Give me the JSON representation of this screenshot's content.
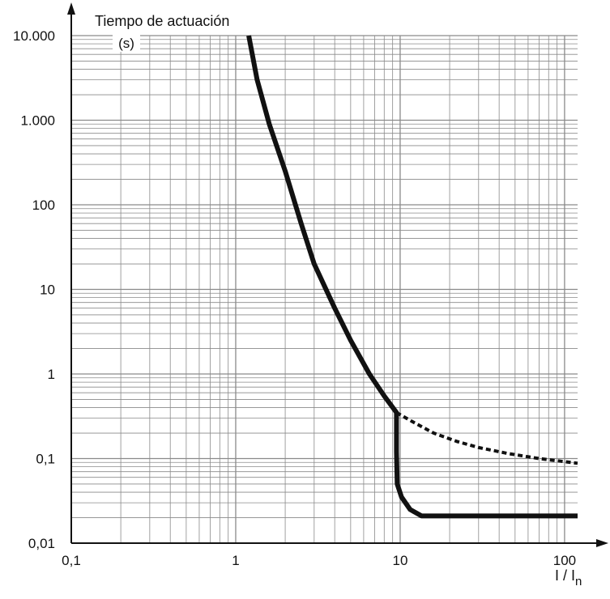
{
  "chart_data": {
    "type": "line",
    "title": "",
    "ylabel": "Tiempo de actuación",
    "yunit": "(s)",
    "xlabel_main": "I / I",
    "xlabel_sub": "n",
    "xscale": "log",
    "yscale": "log",
    "xlim": [
      0.1,
      120
    ],
    "ylim": [
      0.01,
      10000
    ],
    "grid": true,
    "x_ticks": [
      {
        "value": 0.1,
        "label": "0,1"
      },
      {
        "value": 1,
        "label": "1"
      },
      {
        "value": 10,
        "label": "10"
      },
      {
        "value": 100,
        "label": "100"
      }
    ],
    "y_ticks": [
      {
        "value": 0.01,
        "label": "0,01"
      },
      {
        "value": 0.1,
        "label": "0,1"
      },
      {
        "value": 1,
        "label": "1"
      },
      {
        "value": 10,
        "label": "10"
      },
      {
        "value": 100,
        "label": "100"
      },
      {
        "value": 1000,
        "label": "1.000"
      },
      {
        "value": 10000,
        "label": "10.000"
      }
    ],
    "colors": {
      "curve": "#111111",
      "grid": "#8a8a8a",
      "axis": "#111111"
    },
    "series": [
      {
        "style": "solid",
        "points": [
          [
            1.2,
            10000
          ],
          [
            1.35,
            3000
          ],
          [
            1.6,
            900
          ],
          [
            2.0,
            250
          ],
          [
            2.5,
            60
          ],
          [
            3.0,
            20
          ],
          [
            4.0,
            6
          ],
          [
            5.0,
            2.5
          ],
          [
            6.5,
            1.0
          ],
          [
            8.0,
            0.55
          ],
          [
            9.5,
            0.35
          ],
          [
            9.5,
            0.12
          ],
          [
            9.6,
            0.05
          ],
          [
            10.2,
            0.035
          ],
          [
            11.5,
            0.025
          ],
          [
            13.5,
            0.021
          ],
          [
            20,
            0.021
          ],
          [
            50,
            0.021
          ],
          [
            120,
            0.021
          ]
        ]
      },
      {
        "style": "dashed",
        "points": [
          [
            9.5,
            0.35
          ],
          [
            12,
            0.27
          ],
          [
            16,
            0.2
          ],
          [
            22,
            0.16
          ],
          [
            30,
            0.135
          ],
          [
            45,
            0.115
          ],
          [
            70,
            0.1
          ],
          [
            120,
            0.088
          ]
        ]
      }
    ]
  }
}
